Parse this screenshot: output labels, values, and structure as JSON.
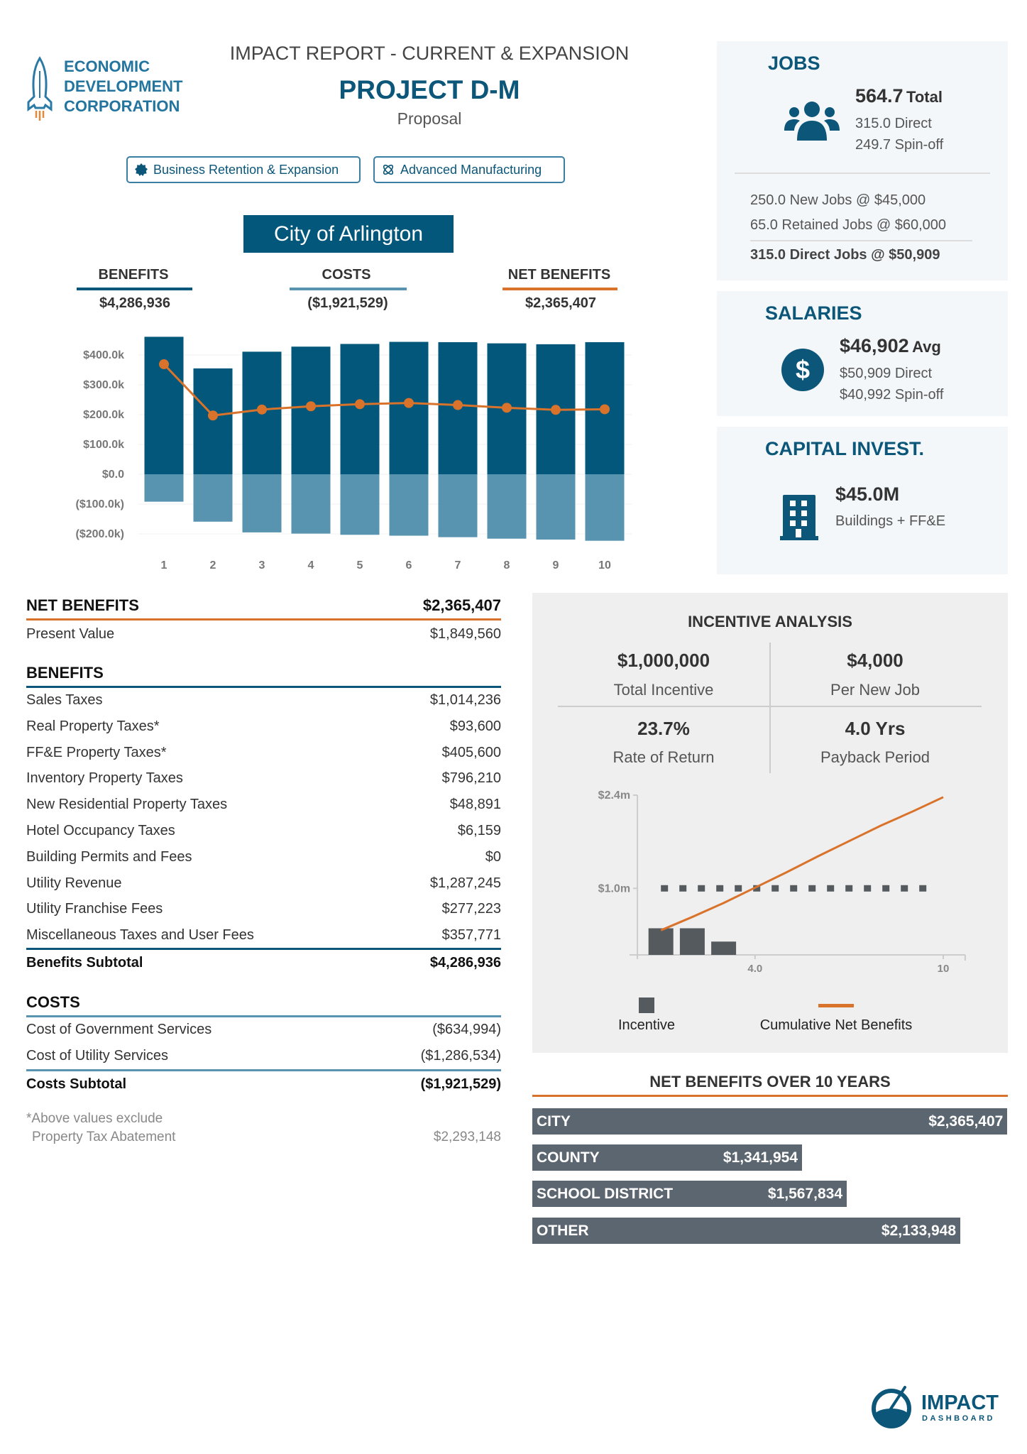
{
  "logo": {
    "lines": [
      "ECONOMIC",
      "DEVELOPMENT",
      "CORPORATION"
    ],
    "icon": "rocket-icon"
  },
  "header": {
    "report_title": "IMPACT REPORT - CURRENT & EXPANSION",
    "project": "PROJECT D-M",
    "status": "Proposal"
  },
  "tags": [
    {
      "label": "Business Retention & Expansion",
      "icon": "badge-icon"
    },
    {
      "label": "Advanced Manufacturing",
      "icon": "atom-icon"
    }
  ],
  "jurisdiction": "City of Arlington",
  "summary": {
    "benefits": {
      "label": "BENEFITS",
      "value": "$4,286,936"
    },
    "costs": {
      "label": "COSTS",
      "value": "($1,921,529)"
    },
    "net": {
      "label": "NET BENEFITS",
      "value": "$2,365,407"
    }
  },
  "colors": {
    "benefits": "#02577a",
    "costs": "#5893b0",
    "net": "#d9732b",
    "panel": "#efefef",
    "card": "#f3f7fa",
    "bar_gray": "#5c6670"
  },
  "chart_data": [
    {
      "type": "bar",
      "categories": [
        "1",
        "2",
        "3",
        "4",
        "5",
        "6",
        "7",
        "8",
        "9",
        "10"
      ],
      "series": [
        {
          "name": "BENEFITS",
          "type": "bar",
          "values": [
            461000,
            355000,
            411000,
            428000,
            437000,
            444000,
            443000,
            439000,
            436000,
            443000
          ]
        },
        {
          "name": "COSTS",
          "type": "bar",
          "values": [
            -92000,
            -159000,
            -195000,
            -199000,
            -203000,
            -206000,
            -211000,
            -216000,
            -219000,
            -223000
          ]
        },
        {
          "name": "NET BENEFITS",
          "type": "line",
          "values": [
            369000,
            197000,
            217000,
            228000,
            235000,
            239000,
            232000,
            223000,
            216000,
            218000
          ]
        }
      ],
      "yticks": [
        {
          "v": 400000,
          "label": "$400.0k"
        },
        {
          "v": 300000,
          "label": "$300.0k"
        },
        {
          "v": 200000,
          "label": "$200.0k"
        },
        {
          "v": 100000,
          "label": "$100.0k"
        },
        {
          "v": 0,
          "label": "$0.0"
        },
        {
          "v": -100000,
          "label": "($100.0k)"
        },
        {
          "v": -200000,
          "label": "($200.0k)"
        }
      ],
      "ylim": [
        -250000,
        480000
      ],
      "grid": true
    },
    {
      "type": "bar",
      "x_ticks": [
        {
          "v": 4,
          "label": "4.0"
        },
        {
          "v": 10,
          "label": "10"
        }
      ],
      "y_ticks": [
        {
          "v": 2.4,
          "label": "$2.4m"
        },
        {
          "v": 1.0,
          "label": "$1.0m"
        }
      ],
      "series": [
        {
          "name": "Incentive",
          "type": "bar",
          "x": [
            1,
            2,
            3
          ],
          "values": [
            0.4,
            0.4,
            0.2
          ]
        },
        {
          "name": "Cumulative Net Benefits",
          "type": "line",
          "x": [
            1,
            2,
            3,
            4,
            5,
            6,
            7,
            8,
            9,
            10
          ],
          "values": [
            0.37,
            0.57,
            0.78,
            1.01,
            1.24,
            1.48,
            1.71,
            1.94,
            2.15,
            2.37
          ]
        },
        {
          "type": "dotted-line",
          "value": 1.0,
          "x_range": [
            1,
            9.6
          ]
        }
      ],
      "ylim": [
        0,
        2.4
      ],
      "xlim": [
        0,
        10.7
      ],
      "legend": "bottom"
    }
  ],
  "net_table": {
    "title": "NET BENEFITS",
    "total": "$2,365,407",
    "pv_label": "Present Value",
    "pv_value": "$1,849,560"
  },
  "benefits_table": {
    "title": "BENEFITS",
    "rows": [
      {
        "label": "Sales Taxes",
        "value": "$1,014,236"
      },
      {
        "label": "Real Property Taxes*",
        "value": "$93,600"
      },
      {
        "label": "FF&E Property Taxes*",
        "value": "$405,600"
      },
      {
        "label": "Inventory Property Taxes",
        "value": "$796,210"
      },
      {
        "label": "New Residential Property Taxes",
        "value": "$48,891"
      },
      {
        "label": "Hotel Occupancy Taxes",
        "value": "$6,159"
      },
      {
        "label": "Building Permits and Fees",
        "value": "$0"
      },
      {
        "label": "Utility Revenue",
        "value": "$1,287,245"
      },
      {
        "label": "Utility Franchise Fees",
        "value": "$277,223"
      },
      {
        "label": "Miscellaneous Taxes and User Fees",
        "value": "$357,771"
      }
    ],
    "subtotal_label": "Benefits Subtotal",
    "subtotal_value": "$4,286,936"
  },
  "costs_table": {
    "title": "COSTS",
    "rows": [
      {
        "label": "Cost of Government Services",
        "value": "($634,994)"
      },
      {
        "label": "Cost of Utility Services",
        "value": "($1,286,534)"
      }
    ],
    "subtotal_label": "Costs Subtotal",
    "subtotal_value": "($1,921,529)"
  },
  "footnote": {
    "line1": "*Above values exclude",
    "line2": "Property Tax Abatement",
    "value": "$2,293,148"
  },
  "jobs": {
    "title": "JOBS",
    "total": "564.7",
    "total_label": "Total",
    "direct": "315.0 Direct",
    "spinoff": "249.7 Spin-off",
    "new_jobs": "250.0 New Jobs @ $45,000",
    "retained": "65.0 Retained Jobs @ $60,000",
    "direct_summary": "315.0 Direct Jobs @ $50,909",
    "icon": "users-icon"
  },
  "salaries": {
    "title": "SALARIES",
    "avg": "$46,902",
    "avg_label": "Avg",
    "direct": "$50,909 Direct",
    "spinoff": "$40,992 Spin-off",
    "icon": "dollar-icon"
  },
  "capital": {
    "title": "CAPITAL INVEST.",
    "value": "$45.0M",
    "label": "Buildings + FF&E",
    "icon": "building-icon"
  },
  "incentive": {
    "title": "INCENTIVE ANALYSIS",
    "cells": [
      {
        "value": "$1,000,000",
        "label": "Total Incentive"
      },
      {
        "value": "$4,000",
        "label": "Per New Job"
      },
      {
        "value": "23.7%",
        "label": "Rate of Return"
      },
      {
        "value": "4.0 Yrs",
        "label": "Payback Period"
      }
    ],
    "legend": [
      "Incentive",
      "Cumulative Net Benefits"
    ]
  },
  "net_over_years": {
    "title": "NET BENEFITS OVER 10 YEARS",
    "bars": [
      {
        "label": "CITY",
        "value": "$2,365,407",
        "amount": 2365407
      },
      {
        "label": "COUNTY",
        "value": "$1,341,954",
        "amount": 1341954
      },
      {
        "label": "SCHOOL DISTRICT",
        "value": "$1,567,834",
        "amount": 1567834
      },
      {
        "label": "OTHER",
        "value": "$2,133,948",
        "amount": 2133948
      }
    ]
  },
  "footer_logo": {
    "line1": "IMPACT",
    "line2": "DASHBOARD",
    "icon": "gauge-icon"
  }
}
